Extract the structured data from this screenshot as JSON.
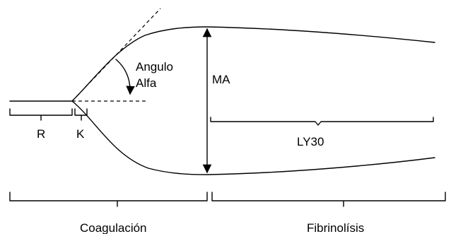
{
  "labels": {
    "angle_line1": "Angulo",
    "angle_line2": "Alfa",
    "ma": "MA",
    "r": "R",
    "k": "K",
    "ly30": "LY30",
    "coagulation": "Coagulación",
    "fibrinolysis": "Fibrinolísis"
  }
}
